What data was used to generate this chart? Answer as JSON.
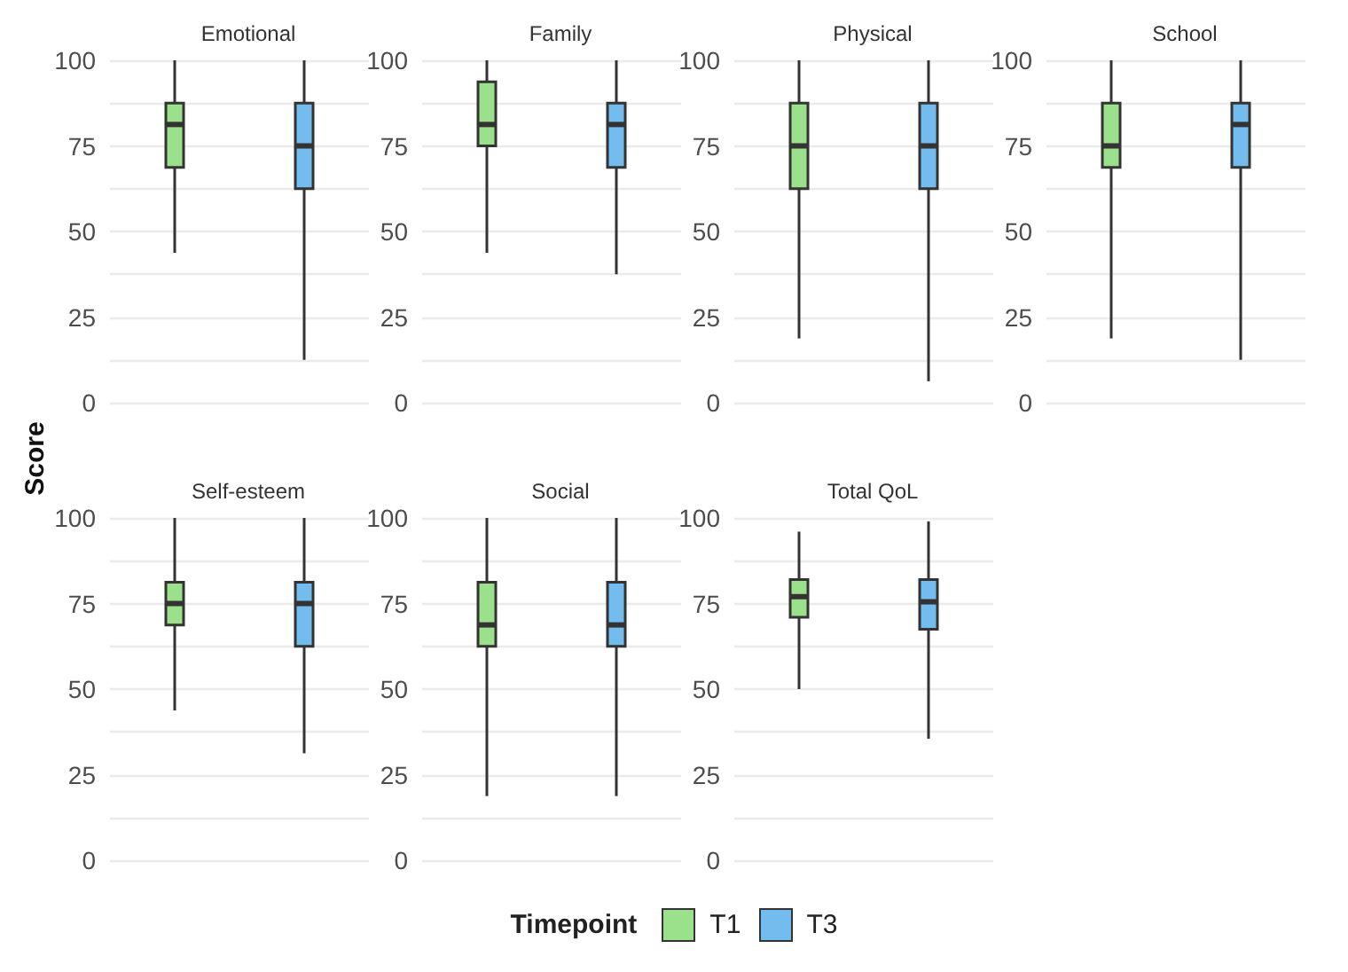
{
  "chart_data": [
    {
      "type": "box",
      "title": "Emotional",
      "ylabel": "Score",
      "legend_title": "Timepoint",
      "legend": "bottom",
      "categories": [
        null,
        null
      ],
      "ylim": [
        0,
        100
      ],
      "yticks": [
        0,
        {
          "value": 12.5,
          "label": null
        },
        25,
        {
          "value": 37.5,
          "label": null
        },
        50,
        {
          "value": 62.5,
          "label": null
        },
        75,
        {
          "value": 87.5,
          "label": null
        },
        100
      ],
      "grid": "y",
      "tick_labels": "y",
      "series": [
        {
          "name": "T1",
          "color": "#9be08a",
          "boxes": [
            {
              "low": 43.75,
              "q1": 68.75,
              "median": 81.25,
              "q3": 87.5,
              "high": 100
            },
            null
          ]
        },
        {
          "name": "T3",
          "color": "#72bdee",
          "boxes": [
            null,
            {
              "low": 12.5,
              "q1": 62.5,
              "median": 75,
              "q3": 87.5,
              "high": 100
            }
          ]
        }
      ]
    },
    {
      "type": "box",
      "title": "Family",
      "categories": [
        null,
        null
      ],
      "ylim": [
        0,
        100
      ],
      "yticks": [
        0,
        {
          "value": 12.5,
          "label": null
        },
        25,
        {
          "value": 37.5,
          "label": null
        },
        50,
        {
          "value": 62.5,
          "label": null
        },
        75,
        {
          "value": 87.5,
          "label": null
        },
        100
      ],
      "grid": "y",
      "tick_labels": "y",
      "series": [
        {
          "name": "T1",
          "color": "#9be08a",
          "boxes": [
            {
              "low": 43.75,
              "q1": 75,
              "median": 81.25,
              "q3": 93.75,
              "high": 100
            },
            null
          ]
        },
        {
          "name": "T3",
          "color": "#72bdee",
          "boxes": [
            null,
            {
              "low": 37.5,
              "q1": 68.75,
              "median": 81.25,
              "q3": 87.5,
              "high": 100
            }
          ]
        }
      ]
    },
    {
      "type": "box",
      "title": "Physical",
      "categories": [
        null,
        null
      ],
      "ylim": [
        0,
        100
      ],
      "yticks": [
        0,
        {
          "value": 12.5,
          "label": null
        },
        25,
        {
          "value": 37.5,
          "label": null
        },
        50,
        {
          "value": 62.5,
          "label": null
        },
        75,
        {
          "value": 87.5,
          "label": null
        },
        100
      ],
      "grid": "y",
      "tick_labels": "y",
      "series": [
        {
          "name": "T1",
          "color": "#9be08a",
          "boxes": [
            {
              "low": 18.75,
              "q1": 62.5,
              "median": 75,
              "q3": 87.5,
              "high": 100
            },
            null
          ]
        },
        {
          "name": "T3",
          "color": "#72bdee",
          "boxes": [
            null,
            {
              "low": 6.25,
              "q1": 62.5,
              "median": 75,
              "q3": 87.5,
              "high": 100
            }
          ]
        }
      ]
    },
    {
      "type": "box",
      "title": "School",
      "categories": [
        null,
        null
      ],
      "ylim": [
        0,
        100
      ],
      "yticks": [
        0,
        {
          "value": 12.5,
          "label": null
        },
        25,
        {
          "value": 37.5,
          "label": null
        },
        50,
        {
          "value": 62.5,
          "label": null
        },
        75,
        {
          "value": 87.5,
          "label": null
        },
        100
      ],
      "grid": "y",
      "tick_labels": "y",
      "series": [
        {
          "name": "T1",
          "color": "#9be08a",
          "boxes": [
            {
              "low": 18.75,
              "q1": 68.75,
              "median": 75,
              "q3": 87.5,
              "high": 100
            },
            null
          ]
        },
        {
          "name": "T3",
          "color": "#72bdee",
          "boxes": [
            null,
            {
              "low": 12.5,
              "q1": 68.75,
              "median": 81.25,
              "q3": 87.5,
              "high": 100
            }
          ]
        }
      ]
    },
    {
      "type": "box",
      "title": "Self-esteem",
      "categories": [
        null,
        null
      ],
      "ylim": [
        0,
        100
      ],
      "yticks": [
        0,
        {
          "value": 12.5,
          "label": null
        },
        25,
        {
          "value": 37.5,
          "label": null
        },
        50,
        {
          "value": 62.5,
          "label": null
        },
        75,
        {
          "value": 87.5,
          "label": null
        },
        100
      ],
      "grid": "y",
      "tick_labels": "y",
      "series": [
        {
          "name": "T1",
          "color": "#9be08a",
          "boxes": [
            {
              "low": 43.75,
              "q1": 68.75,
              "median": 75,
              "q3": 81.25,
              "high": 100
            },
            null
          ]
        },
        {
          "name": "T3",
          "color": "#72bdee",
          "boxes": [
            null,
            {
              "low": 31.25,
              "q1": 62.5,
              "median": 75,
              "q3": 81.25,
              "high": 100
            }
          ]
        }
      ]
    },
    {
      "type": "box",
      "title": "Social",
      "categories": [
        null,
        null
      ],
      "ylim": [
        0,
        100
      ],
      "yticks": [
        0,
        {
          "value": 12.5,
          "label": null
        },
        25,
        {
          "value": 37.5,
          "label": null
        },
        50,
        {
          "value": 62.5,
          "label": null
        },
        75,
        {
          "value": 87.5,
          "label": null
        },
        100
      ],
      "grid": "y",
      "tick_labels": "y",
      "series": [
        {
          "name": "T1",
          "color": "#9be08a",
          "boxes": [
            {
              "low": 18.75,
              "q1": 62.5,
              "median": 68.75,
              "q3": 81.25,
              "high": 100
            },
            null
          ]
        },
        {
          "name": "T3",
          "color": "#72bdee",
          "boxes": [
            null,
            {
              "low": 18.75,
              "q1": 62.5,
              "median": 68.75,
              "q3": 81.25,
              "high": 100
            }
          ]
        }
      ]
    },
    {
      "type": "box",
      "title": "Total QoL",
      "categories": [
        null,
        null
      ],
      "ylim": [
        0,
        100
      ],
      "yticks": [
        0,
        {
          "value": 12.5,
          "label": null
        },
        25,
        {
          "value": 37.5,
          "label": null
        },
        50,
        {
          "value": 62.5,
          "label": null
        },
        75,
        {
          "value": 87.5,
          "label": null
        },
        100
      ],
      "grid": "y",
      "tick_labels": "y",
      "series": [
        {
          "name": "T1",
          "color": "#9be08a",
          "boxes": [
            {
              "low": 50,
              "q1": 71,
              "median": 77,
              "q3": 82,
              "high": 96
            },
            null
          ]
        },
        {
          "name": "T3",
          "color": "#72bdee",
          "boxes": [
            null,
            {
              "low": 35.5,
              "q1": 67.5,
              "median": 75.5,
              "q3": 82,
              "high": 99
            }
          ]
        }
      ]
    }
  ]
}
